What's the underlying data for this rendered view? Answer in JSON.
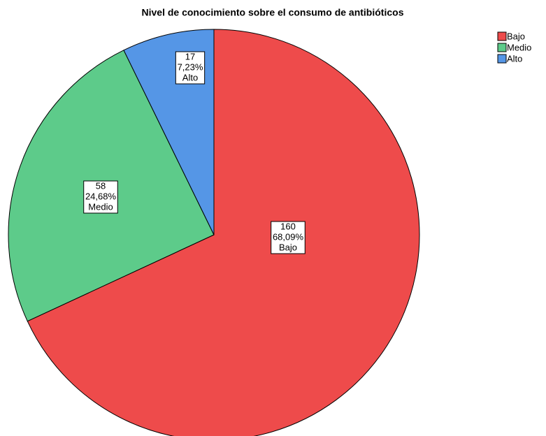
{
  "chart_data": {
    "type": "pie",
    "title": "Nivel de conocimiento sobre el consumo de antibióticos",
    "categories": [
      "Bajo",
      "Medio",
      "Alto"
    ],
    "values": [
      160,
      58,
      17
    ],
    "percents": [
      68.09,
      24.68,
      7.23
    ],
    "percent_labels": [
      "68,09%",
      "24,68%",
      "7,23%"
    ],
    "colors": [
      "#ee4b4b",
      "#5dcb8a",
      "#5596e6"
    ],
    "legend": "top-right"
  }
}
